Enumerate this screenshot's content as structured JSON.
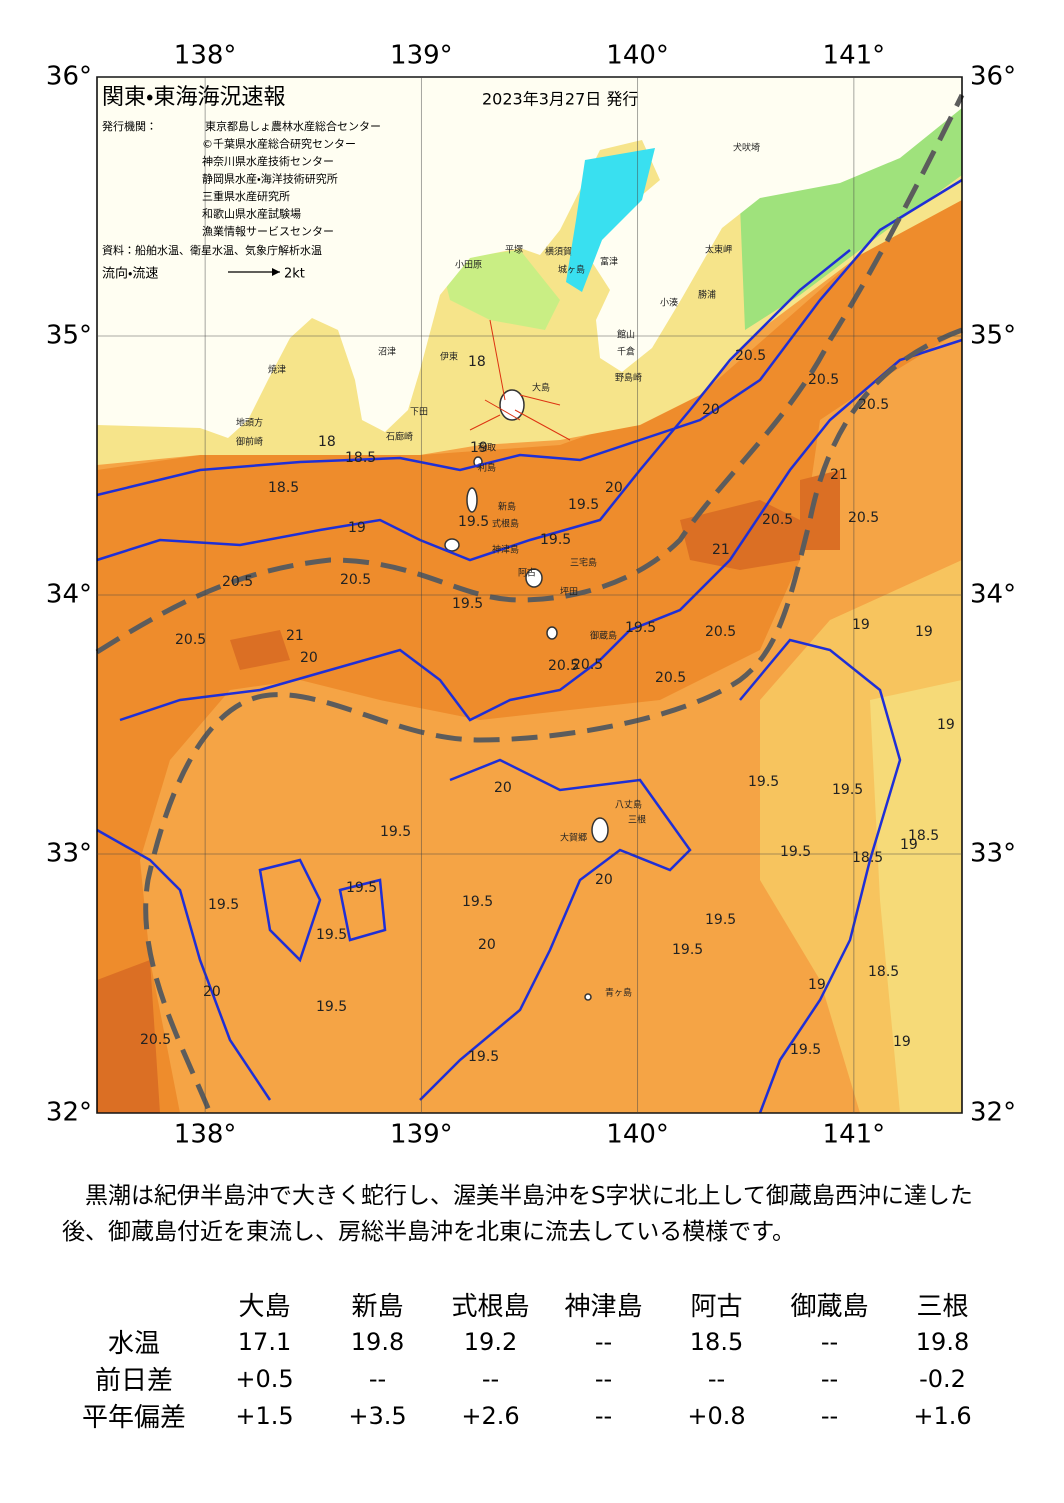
{
  "header": {
    "title": "関東・東海海況速報",
    "date": "2023年3月27日 発行"
  },
  "issuers": {
    "label": "発行機関：",
    "items": [
      "東京都島しょ農林水産総合センター",
      "©千葉県水産総合研究センター",
      "神奈川県水産技術センター",
      "静岡県水産・海洋技術研究所",
      "三重県水産研究所",
      "和歌山県水産試験場",
      "漁業情報サービスセンター"
    ]
  },
  "source": "資料：船舶水温、衛星水温、気象庁解析水温",
  "flow_legend": {
    "label": "流向・流速",
    "speed": "2kt"
  },
  "map": {
    "lonlim": [
      137.5,
      141.5
    ],
    "latlim": [
      32,
      36
    ],
    "lonticks": [
      {
        "value": 138,
        "label": "138°"
      },
      {
        "value": 139,
        "label": "139°"
      },
      {
        "value": 140,
        "label": "140°"
      },
      {
        "value": 141,
        "label": "141°"
      }
    ],
    "latticks": [
      {
        "value": 32,
        "label": "32°"
      },
      {
        "value": 33,
        "label": "33°"
      },
      {
        "value": 34,
        "label": "34°"
      },
      {
        "value": 35,
        "label": "35°"
      },
      {
        "value": 36,
        "label": "36°"
      }
    ],
    "places": [
      "犬吠埼",
      "太東岬",
      "勝浦",
      "小湊",
      "館山",
      "千倉",
      "野島崎",
      "富津",
      "横須賀",
      "城ヶ島",
      "平塚",
      "小田原",
      "沼津",
      "伊東",
      "稲取",
      "下田",
      "石廊崎",
      "焼津",
      "御前崎",
      "地頭方",
      "大島",
      "利島",
      "新島",
      "式根島",
      "神津島",
      "三宅島",
      "阿古",
      "坪田",
      "御蔵島",
      "八丈島",
      "大賀郷",
      "三根",
      "青ヶ島"
    ],
    "contour_labels": [
      "18",
      "18.5",
      "18.5",
      "18",
      "19",
      "19.5",
      "19",
      "20.5",
      "20.5",
      "20.5",
      "20",
      "21",
      "20.5",
      "19.5",
      "19.5",
      "19.5",
      "20.5",
      "20.5",
      "20.5",
      "20.5",
      "20.5",
      "21",
      "21",
      "20.5",
      "20",
      "20",
      "20.5",
      "19",
      "19",
      "19.5",
      "19",
      "19.5",
      "20",
      "19.5",
      "19.5",
      "19.5",
      "19.5",
      "20",
      "20.5",
      "20",
      "19.5",
      "19.5",
      "19.5",
      "19.5",
      "19",
      "19.5",
      "18.5",
      "19",
      "19",
      "19.5",
      "20.5",
      "20",
      "19.5",
      "18.5",
      "18.5",
      "19.5"
    ]
  },
  "description": "　黒潮は紀伊半島沖で大きく蛇行し、渥美半島沖をS字状に北上して御蔵島西沖に達した後、御蔵島付近を東流し、房総半島沖を北東に流去している模様です。",
  "table": {
    "columns": [
      "大島",
      "新島",
      "式根島",
      "神津島",
      "阿古",
      "御蔵島",
      "三根"
    ],
    "rows": [
      {
        "label": "水温",
        "values": [
          "17.1",
          "19.8",
          "19.2",
          "--",
          "18.5",
          "--",
          "19.8"
        ]
      },
      {
        "label": "前日差",
        "values": [
          "+0.5",
          "--",
          "--",
          "--",
          "--",
          "--",
          "-0.2"
        ]
      },
      {
        "label": "平年偏差",
        "values": [
          "+1.5",
          "+3.5",
          "+2.6",
          "--",
          "+0.8",
          "--",
          "+1.6"
        ]
      }
    ]
  }
}
